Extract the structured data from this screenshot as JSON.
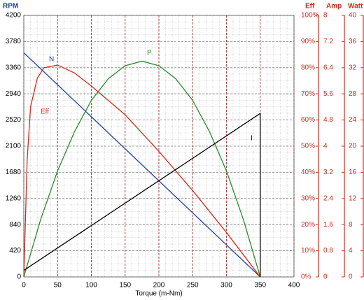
{
  "chart_data": {
    "type": "line",
    "x_label": "Torque (m-Nm)",
    "y_label": "RPM",
    "y2_label": "Eff",
    "y3_label": "Amp",
    "y4_label": "Watt",
    "xlim": [
      0,
      400
    ],
    "xticks": [
      0,
      50,
      100,
      150,
      200,
      250,
      300,
      350,
      400
    ],
    "ylim": [
      0,
      4200
    ],
    "yticks": [
      0,
      420,
      840,
      1260,
      1680,
      2100,
      2520,
      2940,
      3360,
      3780,
      4200
    ],
    "y2lim": [
      0,
      100
    ],
    "y2ticks": [
      {
        "value": 0,
        "label": "0%"
      },
      {
        "value": 10,
        "label": "10%"
      },
      {
        "value": 20,
        "label": "20%"
      },
      {
        "value": 30,
        "label": "30%"
      },
      {
        "value": 40,
        "label": "40%"
      },
      {
        "value": 50,
        "label": "50%"
      },
      {
        "value": 60,
        "label": "60%"
      },
      {
        "value": 70,
        "label": "70%"
      },
      {
        "value": 80,
        "label": "80%"
      },
      {
        "value": 90,
        "label": "90%"
      },
      {
        "value": 100,
        "label": "100%"
      }
    ],
    "y3lim": [
      0,
      8
    ],
    "y3ticks": [
      0,
      0.8,
      1.6,
      2.4,
      3.2,
      4,
      4.8,
      5.6,
      6.4,
      7.2,
      8
    ],
    "y4lim": [
      0,
      40
    ],
    "y4ticks": [
      0,
      4,
      8,
      12,
      16,
      20,
      24,
      28,
      32,
      36,
      40
    ],
    "grid": true,
    "series": [
      {
        "name": "N",
        "color": "#2040b0",
        "axis": "y",
        "x": [
          0,
          350
        ],
        "values": [
          3600,
          0
        ]
      },
      {
        "name": "Eff",
        "color": "#d42a1a",
        "axis": "y2",
        "x": [
          0,
          5,
          10,
          20,
          30,
          50,
          75,
          100,
          150,
          200,
          250,
          300,
          350
        ],
        "values": [
          0,
          45,
          65,
          76,
          80,
          81,
          78,
          73,
          62,
          48,
          33,
          17,
          0
        ]
      },
      {
        "name": "P",
        "color": "#2a8a2a",
        "axis": "y4",
        "x": [
          0,
          25,
          50,
          75,
          100,
          125,
          150,
          175,
          200,
          225,
          250,
          275,
          300,
          325,
          350
        ],
        "values": [
          0,
          8.8,
          16.2,
          22.2,
          27,
          30.3,
          32.3,
          33,
          32.3,
          30.3,
          27,
          22.2,
          16.2,
          8.8,
          0
        ]
      },
      {
        "name": "I",
        "color": "#000000",
        "axis": "y3",
        "x": [
          0,
          350,
          350
        ],
        "values": [
          0.2,
          5.0,
          0
        ]
      }
    ]
  }
}
